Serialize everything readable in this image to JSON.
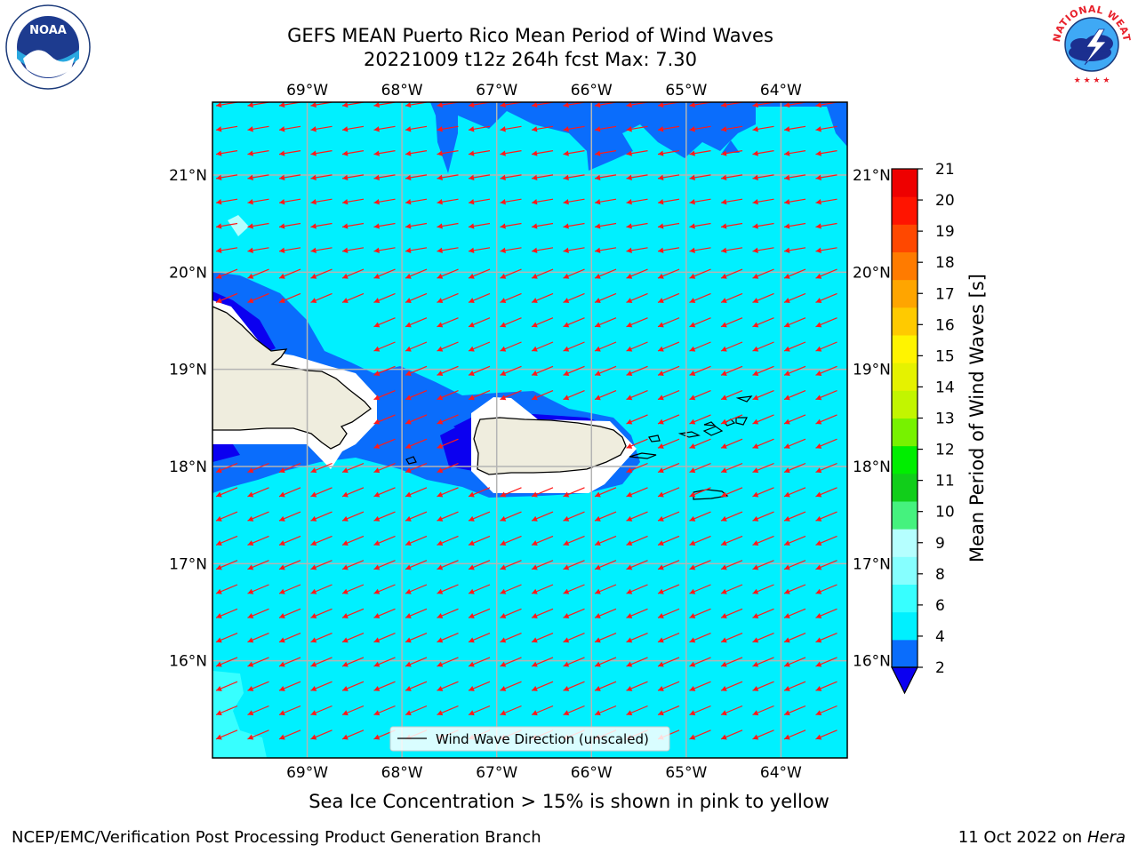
{
  "title": {
    "line1": "GEFS MEAN Puerto Rico Mean Period of Wind Waves",
    "line2": "20221009 t12z 264h fcst   Max: 7.30"
  },
  "map": {
    "lon_range": [
      -70.0,
      -63.3
    ],
    "lat_range": [
      15.0,
      21.75
    ],
    "lon_ticks": [
      "69°W",
      "68°W",
      "67°W",
      "66°W",
      "65°W",
      "64°W"
    ],
    "lat_ticks": [
      "21°N",
      "20°N",
      "19°N",
      "18°N",
      "17°N",
      "16°N"
    ],
    "gridlines": true,
    "wind_direction": "from east-northeast"
  },
  "legend": {
    "label": "Wind Wave Direction (unscaled)",
    "placement": "lower-center"
  },
  "colorbar": {
    "label": "Mean Period of Wind Waves [s]",
    "tick_labels": [
      "2",
      "4",
      "6",
      "8",
      "9",
      "10",
      "11",
      "12",
      "13",
      "14",
      "15",
      "16",
      "17",
      "18",
      "19",
      "20",
      "21"
    ],
    "colors": [
      "#0a6dfc",
      "#00f0ff",
      "#37ffff",
      "#86ffff",
      "#b5ffff",
      "#45f27e",
      "#11ce1a",
      "#00ee00",
      "#77f200",
      "#c2f500",
      "#e5f200",
      "#fff400",
      "#ffca00",
      "#ffa500",
      "#ff7b00",
      "#ff4800",
      "#ff1400",
      "#ee0000"
    ],
    "under_color": "#0b00f0"
  },
  "caption": "Sea Ice Concentration > 15% is shown in pink to yellow",
  "footer": {
    "left": "NCEP/EMC/Verification Post Processing Product Generation Branch",
    "date": "11 Oct 2022 on ",
    "machine": "Hera"
  },
  "logos": {
    "noaa": {
      "text": "NOAA"
    },
    "nws": {
      "text": "NATIONAL WEATHER SERVICE"
    }
  }
}
